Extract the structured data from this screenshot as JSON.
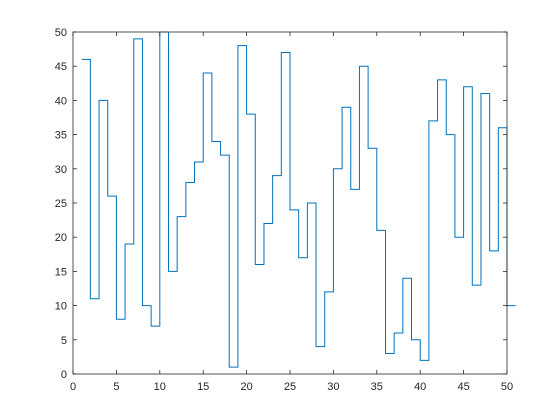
{
  "chart_data": {
    "type": "line",
    "style": "stairs",
    "title": "",
    "xlabel": "",
    "ylabel": "",
    "xlim": [
      0,
      50
    ],
    "ylim": [
      0,
      50
    ],
    "x_ticks": [
      "0",
      "5",
      "10",
      "15",
      "20",
      "25",
      "30",
      "35",
      "40",
      "45",
      "50"
    ],
    "y_ticks": [
      "0",
      "5",
      "10",
      "15",
      "20",
      "25",
      "30",
      "35",
      "40",
      "45",
      "50"
    ],
    "grid": false,
    "line_color": "#0072bd",
    "axis_color": "#262626",
    "series": [
      {
        "x": [
          1,
          2,
          3,
          4,
          5,
          6,
          7,
          8,
          9,
          10,
          11,
          12,
          13,
          14,
          15,
          16,
          17,
          18,
          19,
          20,
          21,
          22,
          23,
          24,
          25,
          26,
          27,
          28,
          29,
          30,
          31,
          32,
          33,
          34,
          35,
          36,
          37,
          38,
          39,
          40,
          41,
          42,
          43,
          44,
          45,
          46,
          47,
          48,
          49,
          50
        ],
        "values": [
          46,
          11,
          40,
          26,
          8,
          19,
          49,
          10,
          7,
          50,
          15,
          23,
          28,
          31,
          44,
          34,
          32,
          1,
          48,
          38,
          16,
          22,
          29,
          47,
          24,
          17,
          25,
          4,
          12,
          30,
          39,
          27,
          45,
          33,
          21,
          3,
          6,
          14,
          5,
          2,
          37,
          43,
          35,
          20,
          42,
          13,
          41,
          18,
          36,
          10
        ]
      }
    ]
  }
}
